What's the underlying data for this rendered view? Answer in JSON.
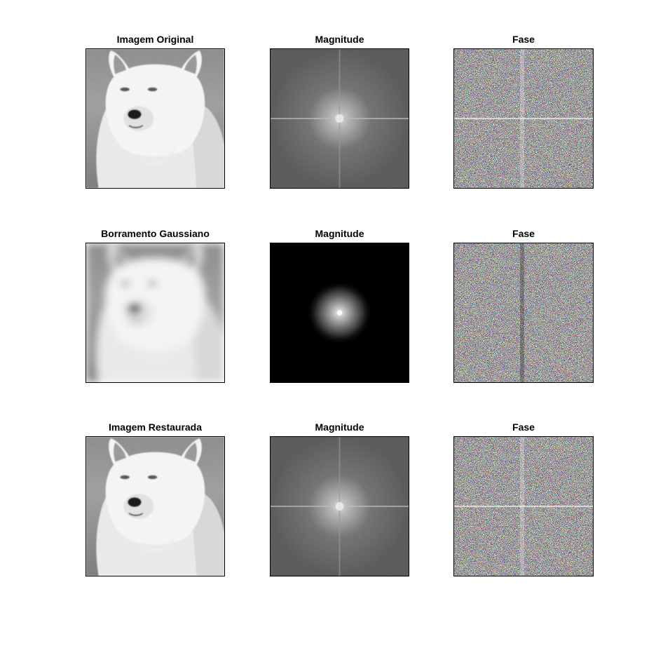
{
  "figure": {
    "panels": [
      {
        "title": "Imagem Original",
        "kind": "image-sharp"
      },
      {
        "title": "Magnitude",
        "kind": "spectrum-wide"
      },
      {
        "title": "Fase",
        "kind": "phase"
      },
      {
        "title": "Borramento Gaussiano",
        "kind": "image-blurred"
      },
      {
        "title": "Magnitude",
        "kind": "spectrum-blurred"
      },
      {
        "title": "Fase",
        "kind": "phase"
      },
      {
        "title": "Imagem Restaurada",
        "kind": "image-sharp"
      },
      {
        "title": "Magnitude",
        "kind": "spectrum-wide"
      },
      {
        "title": "Fase",
        "kind": "phase"
      }
    ]
  }
}
